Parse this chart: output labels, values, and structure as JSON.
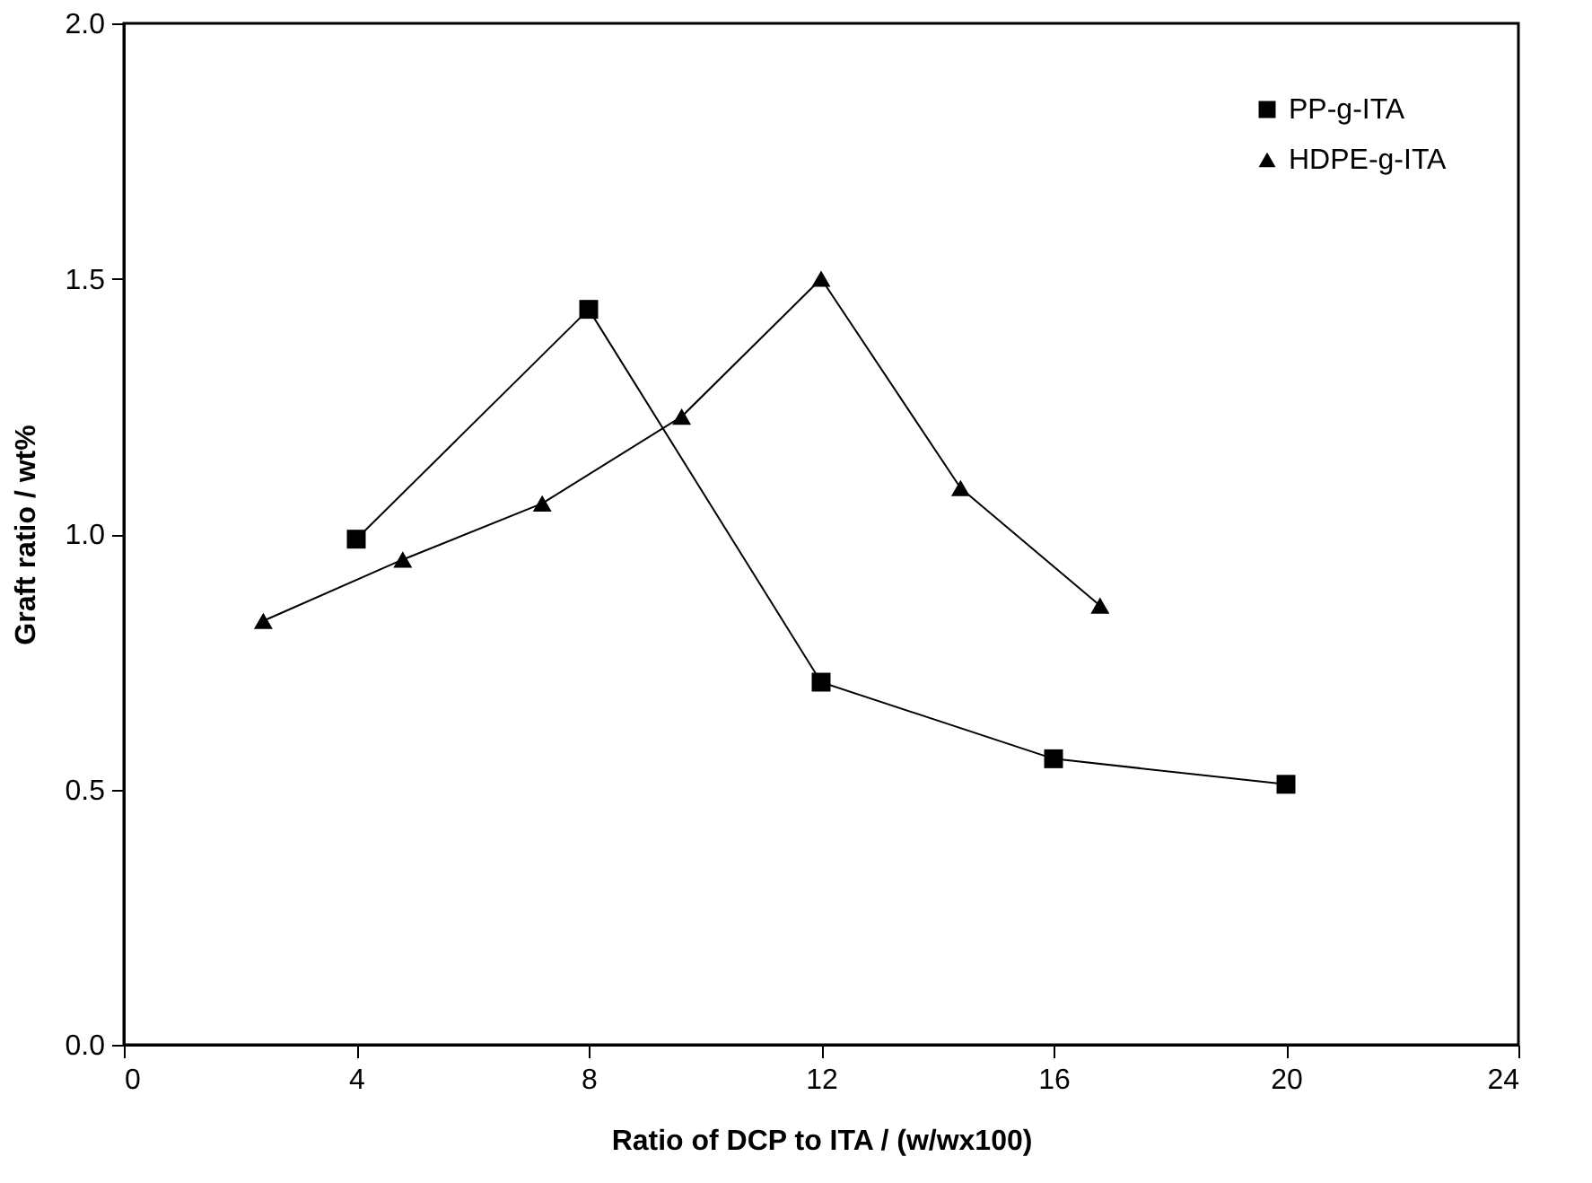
{
  "chart_data": {
    "type": "line",
    "xlabel": "Ratio of DCP to ITA / (w/wx100)",
    "ylabel": "Graft ratio / wt%",
    "xlim": [
      0,
      24
    ],
    "xticks": [
      0,
      4,
      8,
      12,
      16,
      20,
      24
    ],
    "ylim": [
      0.0,
      2.0
    ],
    "yticks": [
      {
        "value": 0,
        "label": "0.0"
      },
      0.5,
      {
        "value": 1,
        "label": "1.0"
      },
      1.5,
      {
        "value": 2,
        "label": "2.0"
      }
    ],
    "grid": false,
    "legend": "top right",
    "line_style": "solid",
    "series": [
      {
        "name": "PP-g-ITA",
        "color": "#000000",
        "marker": "square",
        "x": [
          4,
          8,
          12,
          16,
          20
        ],
        "values": [
          0.99,
          1.44,
          0.71,
          0.56,
          0.51
        ]
      },
      {
        "name": "HDPE-g-ITA",
        "color": "#000000",
        "marker": "triangle",
        "x": [
          2.4,
          4.8,
          7.2,
          9.6,
          12,
          14.4,
          16.8
        ],
        "values": [
          0.83,
          0.95,
          1.06,
          1.23,
          1.5,
          1.09,
          0.86
        ]
      }
    ]
  }
}
